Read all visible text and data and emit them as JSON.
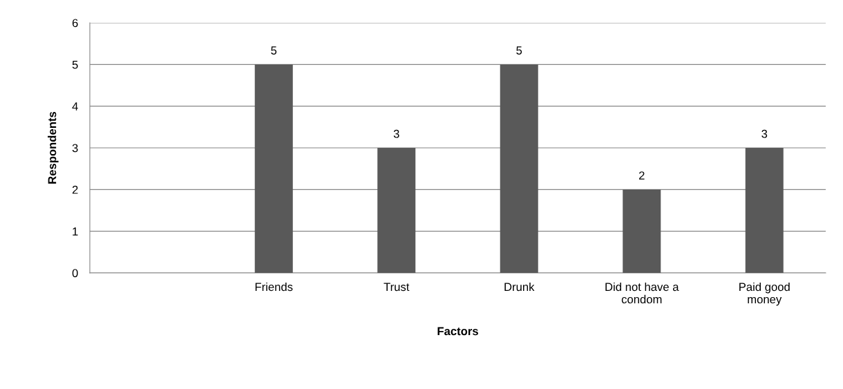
{
  "chart_data": {
    "type": "bar",
    "xlabel": "Factors",
    "ylabel": "Respondents",
    "categories": [
      null,
      "Friends",
      "Trust",
      "Drunk",
      "Did not have a\ncondom",
      "Paid good\nmoney"
    ],
    "values": [
      null,
      5,
      3,
      5,
      2,
      3
    ],
    "color": "#595959",
    "ylim": [
      0,
      6
    ],
    "yticks": [
      0,
      1,
      2,
      3,
      4,
      5,
      6
    ],
    "grid": "y",
    "data_labels": true,
    "legend": false
  }
}
